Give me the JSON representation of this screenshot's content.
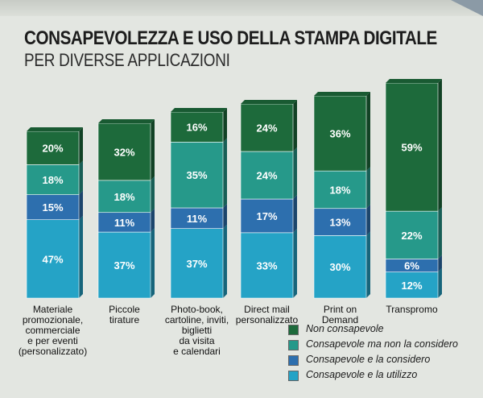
{
  "title": "CONSAPEVOLEZZA E USO DELLA STAMPA DIGITALE",
  "subtitle": "PER DIVERSE APPLICAZIONI",
  "chart_data": {
    "type": "bar",
    "stacked": true,
    "categories": [
      "Materiale\npromozionale,\ncommerciale\ne per eventi\n(personalizzato)",
      "Piccole\ntirature",
      "Photo-book,\ncartoline, inviti,\nbiglietti\nda visita\ne calendari",
      "Direct mail\npersonalizzato",
      "Print on\nDemand",
      "Transpromo"
    ],
    "series": [
      {
        "name": "Consapevole e la utilizzo",
        "values": [
          47,
          37,
          37,
          33,
          30,
          12
        ],
        "labels": [
          "47%",
          "37%",
          "37%",
          "33%",
          "30%",
          "12%"
        ],
        "color": "#25a3c6"
      },
      {
        "name": "Consapevole e la considero",
        "values": [
          15,
          11,
          11,
          17,
          13,
          6
        ],
        "labels": [
          "15%",
          "11%",
          "11%",
          "17%",
          "13%",
          "6%"
        ],
        "color": "#2d6fae"
      },
      {
        "name": "Consapevole ma non la considero",
        "values": [
          18,
          18,
          35,
          24,
          18,
          22
        ],
        "labels": [
          "18%",
          "18%",
          "35%",
          "24%",
          "18%",
          "22%"
        ],
        "color": "#26998a"
      },
      {
        "name": "Non consapevole",
        "values": [
          20,
          32,
          16,
          24,
          36,
          59
        ],
        "labels": [
          "20%",
          "32%",
          "16%",
          "24%",
          "36%",
          "59%"
        ],
        "color": "#1d6a3b"
      }
    ],
    "legend_order": [
      "Non consapevole",
      "Consapevole ma non la considero",
      "Consapevole e la considero",
      "Consapevole e la utilizzo"
    ],
    "legend_position": "bottom-right"
  }
}
